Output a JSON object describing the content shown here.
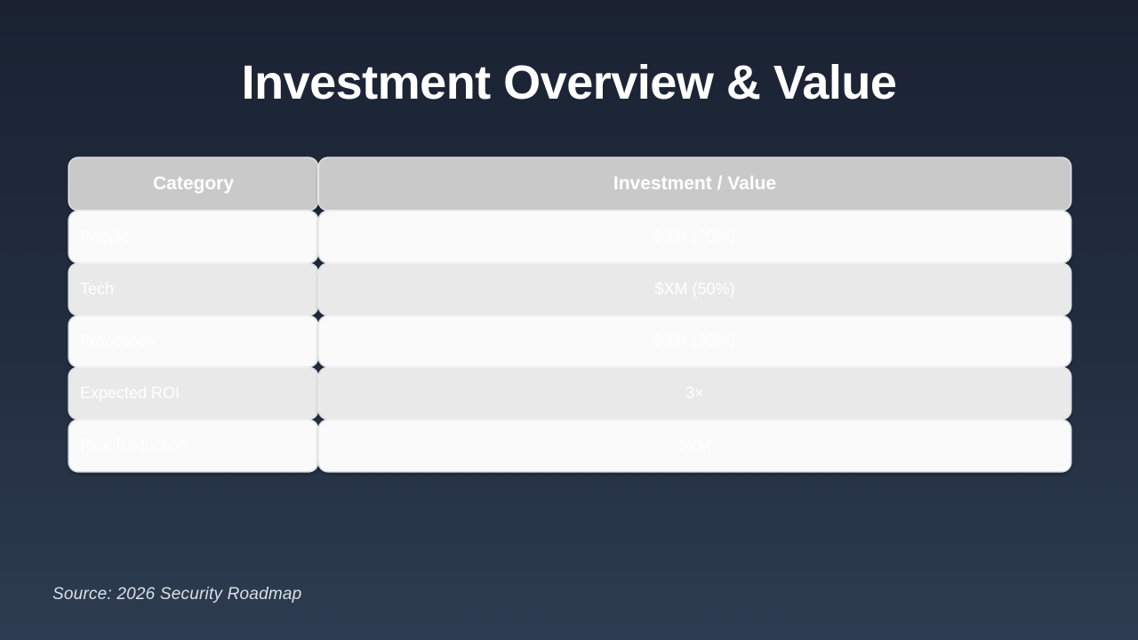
{
  "slide": {
    "title": "Investment Overview & Value",
    "source": "Source: 2026 Security Roadmap"
  },
  "table": {
    "headers": [
      "Category",
      "Investment / Value"
    ],
    "rows": [
      {
        "category": "People",
        "value": "$XM (20%)"
      },
      {
        "category": "Tech",
        "value": "$XM (50%)"
      },
      {
        "category": "Processes",
        "value": "$XM (30%)"
      },
      {
        "category": "Expected ROI",
        "value": "3×"
      },
      {
        "category": "Risk Reduction",
        "value": "$YM"
      }
    ]
  },
  "colors": {
    "background_top": "#1a2232",
    "background_bottom": "#2d3c50",
    "header_cell": "#c9c9c9",
    "row_light": "#fafafa",
    "row_dark": "#e9e9e9",
    "cell_text": "#ffffff",
    "title_text": "#ffffff"
  }
}
